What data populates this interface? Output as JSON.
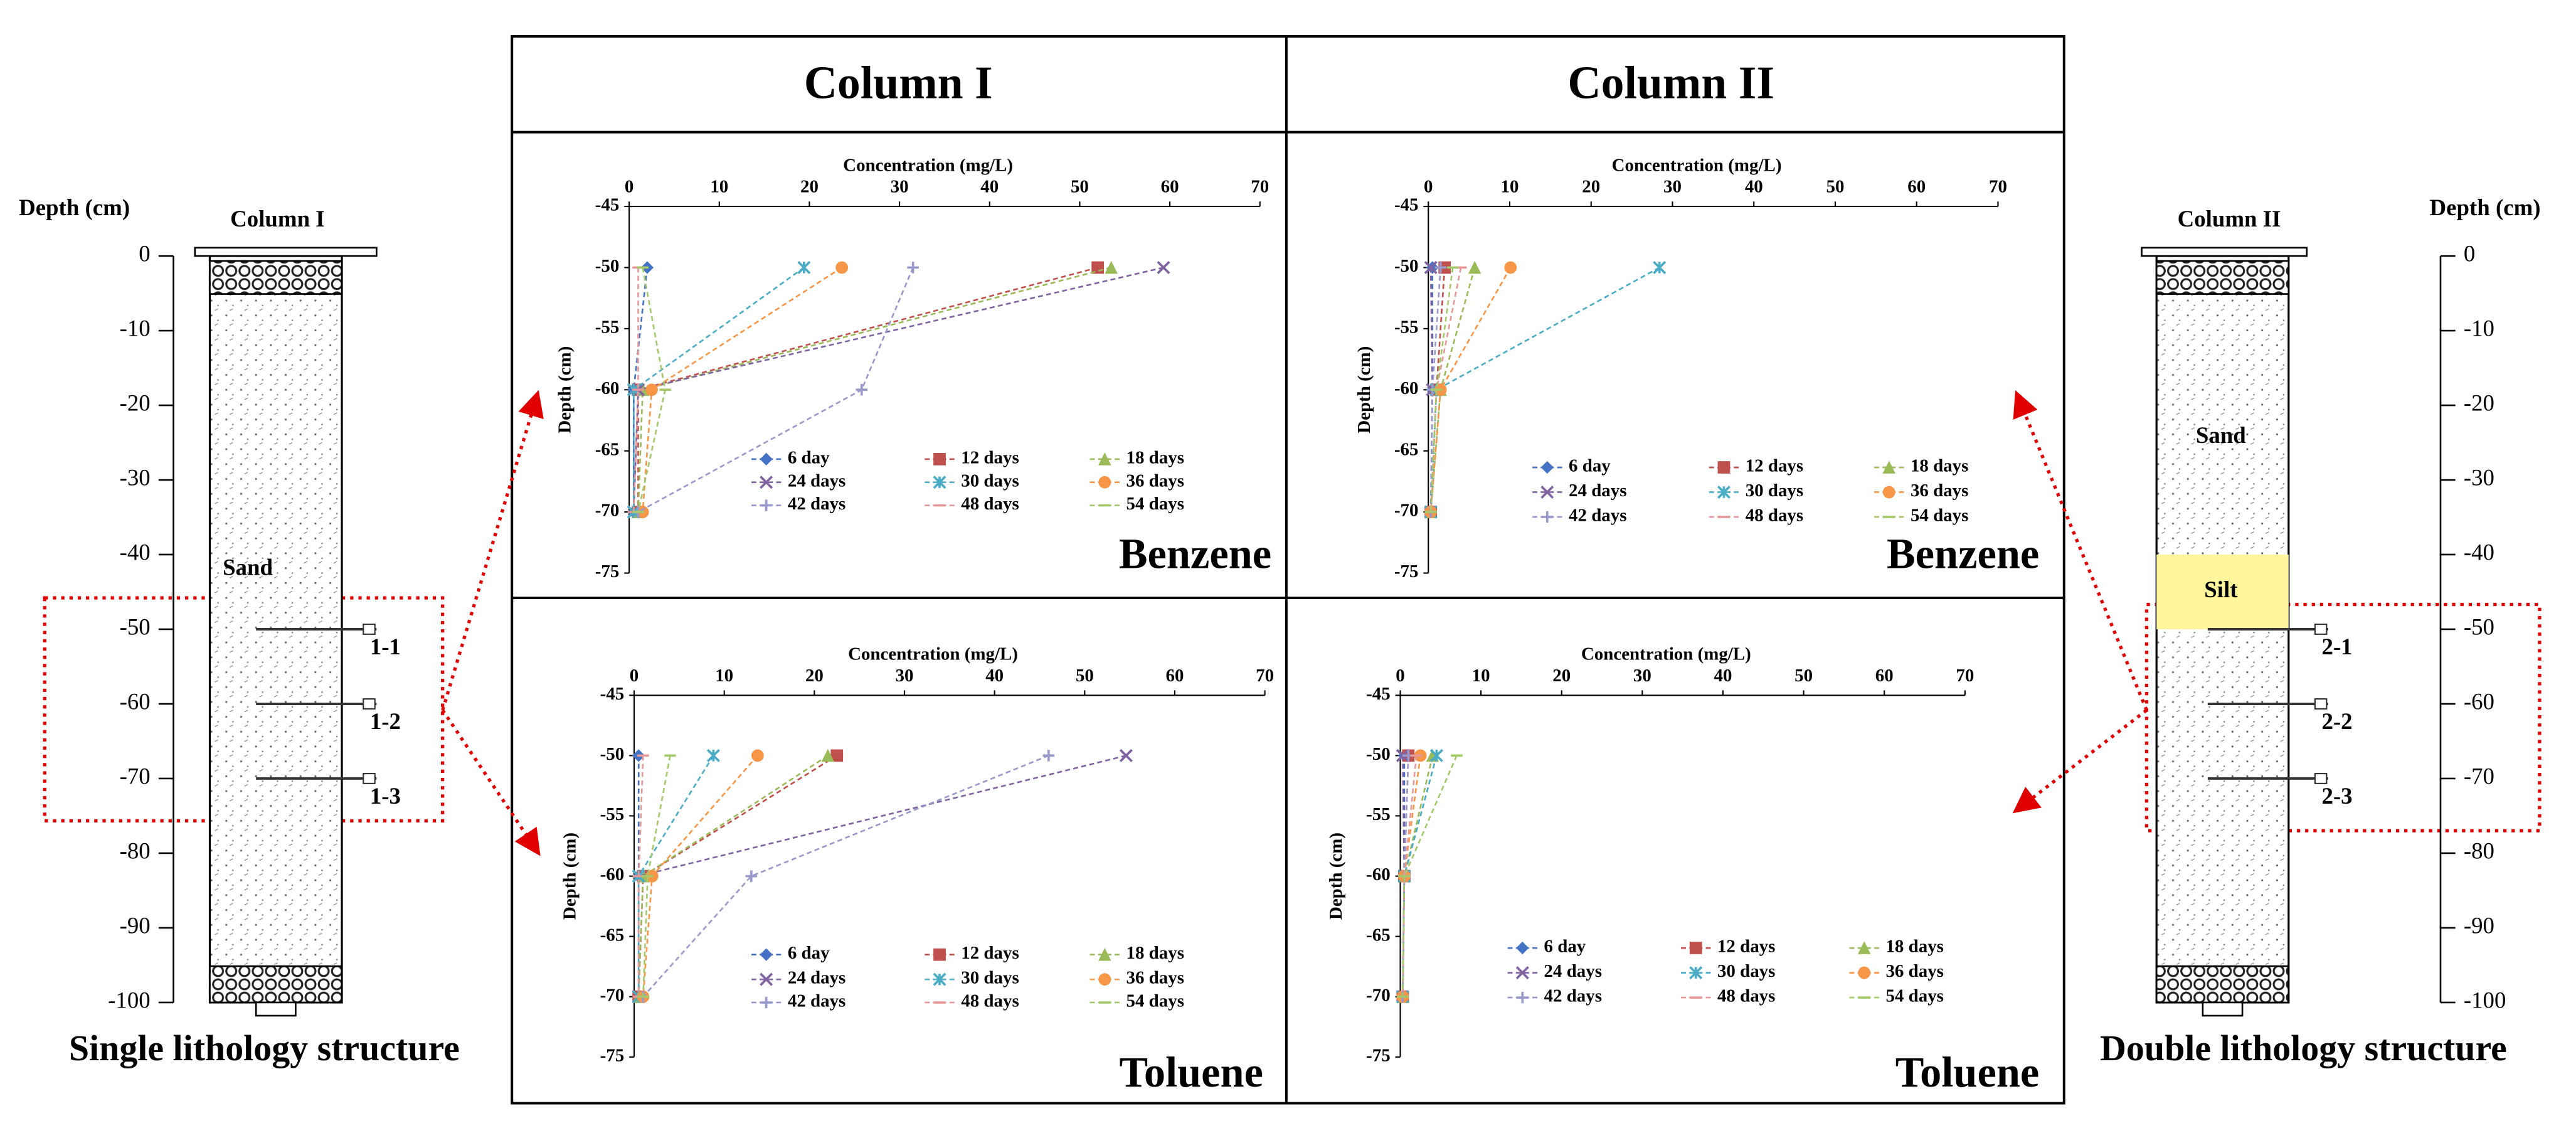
{
  "panels": {
    "headers": [
      "Column I",
      "Column II"
    ]
  },
  "chart_data": [
    {
      "type": "line",
      "x_label": "Concentration (mg/L)",
      "y_label": "Depth (cm)",
      "annotation": "Benzene",
      "xlim": [
        0,
        70
      ],
      "xticks": [
        0,
        10,
        20,
        30,
        40,
        50,
        60,
        70
      ],
      "ylim": [
        -45,
        -75
      ],
      "yticks": [
        -45,
        -50,
        -55,
        -60,
        -65,
        -70,
        -75
      ],
      "series": [
        {
          "name": "6 day",
          "color": "#4472c4",
          "marker": "diamond",
          "x": [
            2,
            0.5,
            0.5
          ],
          "y": [
            -50,
            -60,
            -70
          ]
        },
        {
          "name": "12 days",
          "color": "#c0504d",
          "marker": "square",
          "x": [
            52,
            1,
            1
          ],
          "y": [
            -50,
            -60,
            -70
          ]
        },
        {
          "name": "18 days",
          "color": "#9bbb59",
          "marker": "triangle",
          "x": [
            53.5,
            1.5,
            1
          ],
          "y": [
            -50,
            -60,
            -70
          ]
        },
        {
          "name": "24 days",
          "color": "#8064a2",
          "marker": "x",
          "x": [
            59.3,
            1,
            0.5
          ],
          "y": [
            -50,
            -60,
            -70
          ]
        },
        {
          "name": "30 days",
          "color": "#4bacc6",
          "marker": "star",
          "x": [
            19.4,
            0.5,
            0.5
          ],
          "y": [
            -50,
            -60,
            -70
          ]
        },
        {
          "name": "36 days",
          "color": "#f79646",
          "marker": "circle",
          "x": [
            23.6,
            2.5,
            1.5
          ],
          "y": [
            -50,
            -60,
            -70
          ]
        },
        {
          "name": "42 days",
          "color": "#9999cc",
          "marker": "plus",
          "x": [
            31.5,
            25.8,
            1
          ],
          "y": [
            -50,
            -60,
            -70
          ]
        },
        {
          "name": "48 days",
          "color": "#e69999",
          "marker": "dash",
          "x": [
            1,
            1,
            0.5
          ],
          "y": [
            -50,
            -60,
            -70
          ]
        },
        {
          "name": "54 days",
          "color": "#a4c96a",
          "marker": "dash",
          "x": [
            1.5,
            4,
            1
          ],
          "y": [
            -50,
            -60,
            -70
          ]
        }
      ]
    },
    {
      "type": "line",
      "x_label": "Concentration (mg/L)",
      "y_label": "Depth (cm)",
      "annotation": "Toluene",
      "xlim": [
        0,
        70
      ],
      "xticks": [
        0,
        10,
        20,
        30,
        40,
        50,
        60,
        70
      ],
      "ylim": [
        -45,
        -75
      ],
      "yticks": [
        -45,
        -50,
        -55,
        -60,
        -65,
        -70,
        -75
      ],
      "series": [
        {
          "name": "6 day",
          "color": "#4472c4",
          "marker": "diamond",
          "x": [
            0.5,
            0.5,
            0.5
          ],
          "y": [
            -50,
            -60,
            -70
          ]
        },
        {
          "name": "12 days",
          "color": "#c0504d",
          "marker": "square",
          "x": [
            22.5,
            1,
            0.5
          ],
          "y": [
            -50,
            -60,
            -70
          ]
        },
        {
          "name": "18 days",
          "color": "#9bbb59",
          "marker": "triangle",
          "x": [
            21.5,
            1,
            0.5
          ],
          "y": [
            -50,
            -60,
            -70
          ]
        },
        {
          "name": "24 days",
          "color": "#8064a2",
          "marker": "x",
          "x": [
            54.6,
            0.5,
            0.5
          ],
          "y": [
            -50,
            -60,
            -70
          ]
        },
        {
          "name": "30 days",
          "color": "#4bacc6",
          "marker": "star",
          "x": [
            8.8,
            0.5,
            0.5
          ],
          "y": [
            -50,
            -60,
            -70
          ]
        },
        {
          "name": "36 days",
          "color": "#f79646",
          "marker": "circle",
          "x": [
            13.7,
            2,
            1
          ],
          "y": [
            -50,
            -60,
            -70
          ]
        },
        {
          "name": "42 days",
          "color": "#9999cc",
          "marker": "plus",
          "x": [
            46,
            13,
            1
          ],
          "y": [
            -50,
            -60,
            -70
          ]
        },
        {
          "name": "48 days",
          "color": "#e69999",
          "marker": "dash",
          "x": [
            1,
            0.5,
            0.5
          ],
          "y": [
            -50,
            -60,
            -70
          ]
        },
        {
          "name": "54 days",
          "color": "#a4c96a",
          "marker": "dash",
          "x": [
            4,
            1.5,
            1
          ],
          "y": [
            -50,
            -60,
            -70
          ]
        }
      ]
    },
    {
      "type": "line",
      "x_label": "Concentration (mg/L)",
      "y_label": "Depth (cm)",
      "annotation": "Benzene",
      "xlim": [
        0,
        70
      ],
      "xticks": [
        0,
        10,
        20,
        30,
        40,
        50,
        60,
        70
      ],
      "ylim": [
        -45,
        -75
      ],
      "yticks": [
        -45,
        -50,
        -55,
        -60,
        -65,
        -70,
        -75
      ],
      "series": [
        {
          "name": "6 day",
          "color": "#4472c4",
          "marker": "diamond",
          "x": [
            0.5,
            0.5,
            0.3
          ],
          "y": [
            -50,
            -60,
            -70
          ]
        },
        {
          "name": "12 days",
          "color": "#c0504d",
          "marker": "square",
          "x": [
            2,
            1,
            0.3
          ],
          "y": [
            -50,
            -60,
            -70
          ]
        },
        {
          "name": "18 days",
          "color": "#9bbb59",
          "marker": "triangle",
          "x": [
            5.7,
            1.5,
            0.3
          ],
          "y": [
            -50,
            -60,
            -70
          ]
        },
        {
          "name": "24 days",
          "color": "#8064a2",
          "marker": "x",
          "x": [
            0.3,
            0.5,
            0.3
          ],
          "y": [
            -50,
            -60,
            -70
          ]
        },
        {
          "name": "30 days",
          "color": "#4bacc6",
          "marker": "star",
          "x": [
            28.4,
            1,
            0.3
          ],
          "y": [
            -50,
            -60,
            -70
          ]
        },
        {
          "name": "36 days",
          "color": "#f79646",
          "marker": "circle",
          "x": [
            10.1,
            1.5,
            0.3
          ],
          "y": [
            -50,
            -60,
            -70
          ]
        },
        {
          "name": "42 days",
          "color": "#9999cc",
          "marker": "plus",
          "x": [
            1.5,
            0.5,
            0.3
          ],
          "y": [
            -50,
            -60,
            -70
          ]
        },
        {
          "name": "48 days",
          "color": "#e69999",
          "marker": "dash",
          "x": [
            4,
            1,
            0.3
          ],
          "y": [
            -50,
            -60,
            -70
          ]
        },
        {
          "name": "54 days",
          "color": "#a4c96a",
          "marker": "dash",
          "x": [
            3,
            1,
            0.3
          ],
          "y": [
            -50,
            -60,
            -70
          ]
        }
      ]
    },
    {
      "type": "line",
      "x_label": "Concentration (mg/L)",
      "y_label": "Depth (cm)",
      "annotation": "Toluene",
      "xlim": [
        0,
        70
      ],
      "xticks": [
        0,
        10,
        20,
        30,
        40,
        50,
        60,
        70
      ],
      "ylim": [
        -45,
        -75
      ],
      "yticks": [
        -45,
        -50,
        -55,
        -60,
        -65,
        -70,
        -75
      ],
      "series": [
        {
          "name": "6 day",
          "color": "#4472c4",
          "marker": "diamond",
          "x": [
            0.5,
            0.5,
            0.3
          ],
          "y": [
            -50,
            -60,
            -70
          ]
        },
        {
          "name": "12 days",
          "color": "#c0504d",
          "marker": "square",
          "x": [
            1,
            0.5,
            0.3
          ],
          "y": [
            -50,
            -60,
            -70
          ]
        },
        {
          "name": "18 days",
          "color": "#9bbb59",
          "marker": "triangle",
          "x": [
            4,
            0.5,
            0.3
          ],
          "y": [
            -50,
            -60,
            -70
          ]
        },
        {
          "name": "24 days",
          "color": "#8064a2",
          "marker": "x",
          "x": [
            0.3,
            0.5,
            0.3
          ],
          "y": [
            -50,
            -60,
            -70
          ]
        },
        {
          "name": "30 days",
          "color": "#4bacc6",
          "marker": "star",
          "x": [
            4.5,
            0.5,
            0.3
          ],
          "y": [
            -50,
            -60,
            -70
          ]
        },
        {
          "name": "36 days",
          "color": "#f79646",
          "marker": "circle",
          "x": [
            2.5,
            0.5,
            0.3
          ],
          "y": [
            -50,
            -60,
            -70
          ]
        },
        {
          "name": "42 days",
          "color": "#9999cc",
          "marker": "plus",
          "x": [
            1,
            0.5,
            0.3
          ],
          "y": [
            -50,
            -60,
            -70
          ]
        },
        {
          "name": "48 days",
          "color": "#e69999",
          "marker": "dash",
          "x": [
            2,
            0.5,
            0.3
          ],
          "y": [
            -50,
            -60,
            -70
          ]
        },
        {
          "name": "54 days",
          "color": "#a4c96a",
          "marker": "dash",
          "x": [
            7,
            0.5,
            0.3
          ],
          "y": [
            -50,
            -60,
            -70
          ]
        }
      ]
    }
  ],
  "diagrams": [
    {
      "title": "Column I",
      "depth_label": "Depth (cm)",
      "ylim": [
        0,
        -100
      ],
      "ticks": [
        0,
        -10,
        -20,
        -30,
        -40,
        -50,
        -60,
        -70,
        -80,
        -90,
        -100
      ],
      "layers": [
        {
          "name": "Sand"
        }
      ],
      "ports": [
        {
          "label": "1-1",
          "depth": -50
        },
        {
          "label": "1-2",
          "depth": -60
        },
        {
          "label": "1-3",
          "depth": -70
        }
      ],
      "caption": "Single lithology structure"
    },
    {
      "title": "Column II",
      "depth_label": "Depth (cm)",
      "ylim": [
        0,
        -100
      ],
      "ticks": [
        0,
        -10,
        -20,
        -30,
        -40,
        -50,
        -60,
        -70,
        -80,
        -90,
        -100
      ],
      "layers": [
        {
          "name": "Sand"
        },
        {
          "name": "Silt",
          "range": [
            -40,
            -50
          ]
        }
      ],
      "ports": [
        {
          "label": "2-1",
          "depth": -50
        },
        {
          "label": "2-2",
          "depth": -60
        },
        {
          "label": "2-3",
          "depth": -70
        }
      ],
      "caption": "Double lithology structure"
    }
  ]
}
